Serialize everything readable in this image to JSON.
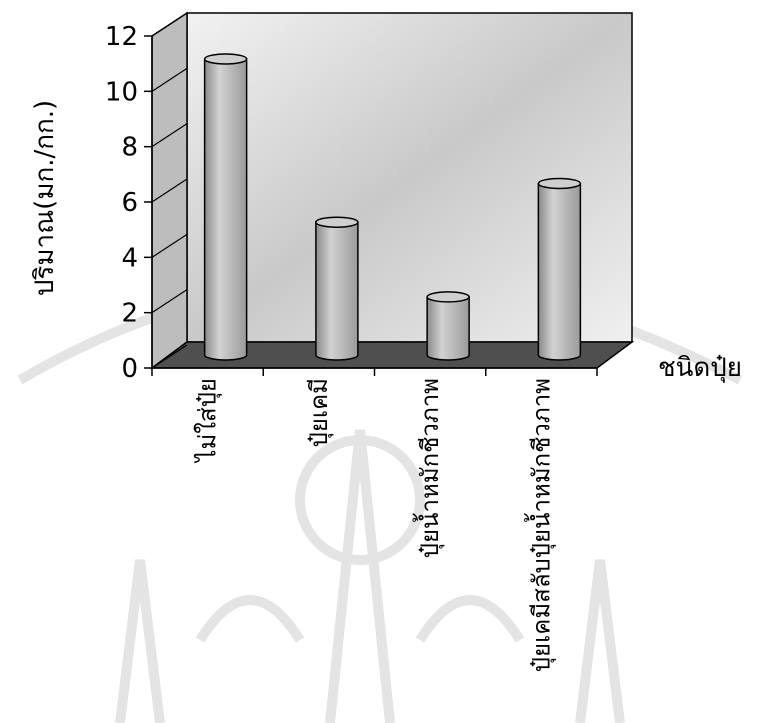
{
  "chart_data": {
    "type": "bar",
    "style": "3d-cylinder",
    "categories": [
      "ไม่ใส่ปุ๋ย",
      "ปุ๋ยเคมี",
      "ปุ๋ยน้ำหมักชีวภาพ",
      "ปุ๋ยเคมีสลับปุ๋ยน้ำหมักชีวภาพ"
    ],
    "values": [
      10.7,
      4.8,
      2.1,
      6.2
    ],
    "ylabel": "ปริมาณ(มก./กก.)",
    "xlabel": "ชนิดปุ๋ย",
    "ylim": [
      0,
      12
    ],
    "yticks": [
      0,
      2,
      4,
      6,
      8,
      10,
      12
    ],
    "grid": false,
    "bar_color": "#bdbdbd",
    "wall_color": "#d9d9d9",
    "floor_color": "#555555"
  }
}
